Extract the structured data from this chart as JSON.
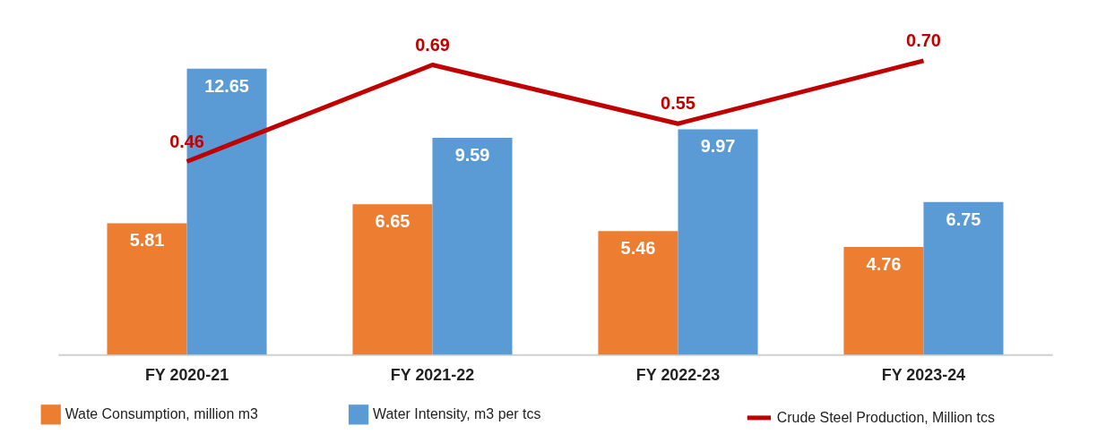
{
  "chart_data": {
    "type": "bar",
    "categories": [
      "FY 2020-21",
      "FY 2021-22",
      "FY 2022-23",
      "FY 2023-24"
    ],
    "series": [
      {
        "name": "Wate Consumption, million m3",
        "color": "#ed7d31",
        "values": [
          5.81,
          6.65,
          5.46,
          4.76
        ]
      },
      {
        "name": "Water Intensity, m3 per tcs",
        "color": "#5b9bd5",
        "values": [
          12.65,
          9.59,
          9.97,
          6.75
        ]
      },
      {
        "name": "Crude Steel Production, Million tcs",
        "color": "#c00000",
        "type": "line",
        "axis": "y2",
        "values": [
          0.46,
          0.69,
          0.55,
          0.7
        ],
        "value_labels": [
          "0.46",
          "0.69",
          "0.55",
          "0.70"
        ]
      }
    ],
    "tick_labels": "x",
    "data_labels": true,
    "legend": "bottom"
  }
}
